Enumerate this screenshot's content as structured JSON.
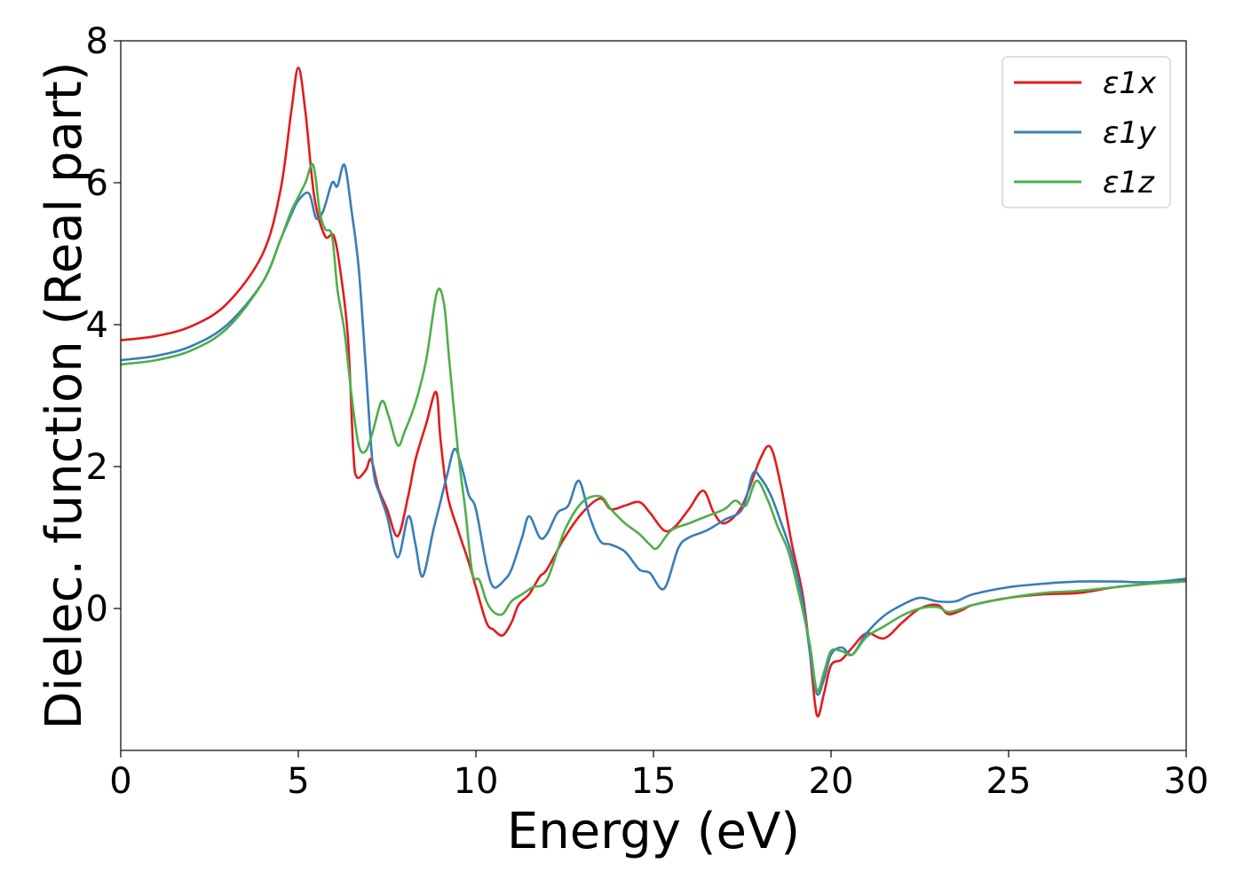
{
  "chart_data": {
    "type": "line",
    "title": "",
    "xlabel": "Energy (eV)",
    "ylabel": "Dielec. function (Real part)",
    "xlim": [
      0,
      30
    ],
    "ylim": [
      -2,
      8
    ],
    "xticks": [
      0,
      5,
      10,
      15,
      20,
      25,
      30
    ],
    "yticks": [
      0,
      2,
      4,
      6,
      8
    ],
    "grid": false,
    "legend_position": "top-right",
    "series": [
      {
        "name": "ε1x",
        "color": "#e41a1c",
        "points": [
          [
            0,
            3.78
          ],
          [
            1,
            3.84
          ],
          [
            2,
            3.98
          ],
          [
            3,
            4.3
          ],
          [
            4,
            5.0
          ],
          [
            4.5,
            5.9
          ],
          [
            4.8,
            7.0
          ],
          [
            5.0,
            7.62
          ],
          [
            5.2,
            7.0
          ],
          [
            5.45,
            5.8
          ],
          [
            5.75,
            5.25
          ],
          [
            6.0,
            5.25
          ],
          [
            6.2,
            4.7
          ],
          [
            6.4,
            3.8
          ],
          [
            6.55,
            2.2
          ],
          [
            6.65,
            1.85
          ],
          [
            6.9,
            1.95
          ],
          [
            7.05,
            2.1
          ],
          [
            7.25,
            1.7
          ],
          [
            7.5,
            1.4
          ],
          [
            7.8,
            1.02
          ],
          [
            8.1,
            1.6
          ],
          [
            8.3,
            2.1
          ],
          [
            8.6,
            2.6
          ],
          [
            8.88,
            3.05
          ],
          [
            9.0,
            2.4
          ],
          [
            9.2,
            1.6
          ],
          [
            9.5,
            1.1
          ],
          [
            9.8,
            0.65
          ],
          [
            10.0,
            0.3
          ],
          [
            10.3,
            -0.2
          ],
          [
            10.5,
            -0.3
          ],
          [
            10.75,
            -0.38
          ],
          [
            11.0,
            -0.2
          ],
          [
            11.2,
            0.05
          ],
          [
            11.5,
            0.2
          ],
          [
            11.8,
            0.45
          ],
          [
            12.0,
            0.55
          ],
          [
            12.5,
            1.0
          ],
          [
            13.0,
            1.35
          ],
          [
            13.5,
            1.55
          ],
          [
            13.8,
            1.4
          ],
          [
            14.2,
            1.45
          ],
          [
            14.6,
            1.5
          ],
          [
            14.9,
            1.35
          ],
          [
            15.3,
            1.1
          ],
          [
            15.6,
            1.15
          ],
          [
            16.0,
            1.4
          ],
          [
            16.4,
            1.66
          ],
          [
            16.7,
            1.35
          ],
          [
            17.0,
            1.2
          ],
          [
            17.5,
            1.45
          ],
          [
            18.0,
            2.1
          ],
          [
            18.3,
            2.27
          ],
          [
            18.6,
            1.7
          ],
          [
            18.9,
            0.9
          ],
          [
            19.2,
            0.2
          ],
          [
            19.4,
            -0.6
          ],
          [
            19.6,
            -1.5
          ],
          [
            19.8,
            -1.2
          ],
          [
            20.0,
            -0.8
          ],
          [
            20.3,
            -0.72
          ],
          [
            20.6,
            -0.55
          ],
          [
            21.0,
            -0.35
          ],
          [
            21.5,
            -0.42
          ],
          [
            22.0,
            -0.2
          ],
          [
            22.5,
            0.0
          ],
          [
            23.0,
            0.05
          ],
          [
            23.3,
            -0.08
          ],
          [
            23.7,
            -0.02
          ],
          [
            24.0,
            0.05
          ],
          [
            25.0,
            0.15
          ],
          [
            26.0,
            0.2
          ],
          [
            27.0,
            0.22
          ],
          [
            28.0,
            0.3
          ],
          [
            29.0,
            0.35
          ],
          [
            30.0,
            0.4
          ]
        ]
      },
      {
        "name": "ε1y",
        "color": "#377eb8",
        "points": [
          [
            0,
            3.5
          ],
          [
            1,
            3.56
          ],
          [
            2,
            3.7
          ],
          [
            3,
            4.0
          ],
          [
            4,
            4.6
          ],
          [
            4.5,
            5.2
          ],
          [
            4.8,
            5.55
          ],
          [
            5.0,
            5.75
          ],
          [
            5.3,
            5.85
          ],
          [
            5.5,
            5.5
          ],
          [
            5.7,
            5.6
          ],
          [
            5.95,
            6.0
          ],
          [
            6.1,
            5.95
          ],
          [
            6.3,
            6.25
          ],
          [
            6.5,
            5.6
          ],
          [
            6.7,
            4.8
          ],
          [
            6.9,
            3.4
          ],
          [
            7.1,
            2.0
          ],
          [
            7.3,
            1.6
          ],
          [
            7.5,
            1.3
          ],
          [
            7.8,
            0.72
          ],
          [
            8.1,
            1.3
          ],
          [
            8.3,
            0.9
          ],
          [
            8.5,
            0.45
          ],
          [
            8.8,
            1.1
          ],
          [
            9.0,
            1.5
          ],
          [
            9.2,
            1.9
          ],
          [
            9.4,
            2.25
          ],
          [
            9.6,
            2.0
          ],
          [
            9.8,
            1.6
          ],
          [
            10.0,
            1.4
          ],
          [
            10.3,
            0.6
          ],
          [
            10.5,
            0.3
          ],
          [
            10.8,
            0.4
          ],
          [
            11.0,
            0.55
          ],
          [
            11.3,
            1.0
          ],
          [
            11.5,
            1.3
          ],
          [
            11.8,
            1.0
          ],
          [
            12.0,
            1.05
          ],
          [
            12.3,
            1.35
          ],
          [
            12.6,
            1.45
          ],
          [
            12.9,
            1.8
          ],
          [
            13.2,
            1.3
          ],
          [
            13.5,
            0.95
          ],
          [
            13.8,
            0.9
          ],
          [
            14.2,
            0.8
          ],
          [
            14.6,
            0.55
          ],
          [
            14.9,
            0.5
          ],
          [
            15.3,
            0.28
          ],
          [
            15.7,
            0.85
          ],
          [
            16.0,
            1.0
          ],
          [
            16.5,
            1.1
          ],
          [
            17.0,
            1.25
          ],
          [
            17.5,
            1.4
          ],
          [
            17.8,
            1.9
          ],
          [
            18.0,
            1.85
          ],
          [
            18.3,
            1.6
          ],
          [
            18.6,
            1.2
          ],
          [
            18.9,
            0.75
          ],
          [
            19.2,
            0.1
          ],
          [
            19.4,
            -0.6
          ],
          [
            19.6,
            -1.2
          ],
          [
            19.8,
            -1.0
          ],
          [
            20.0,
            -0.65
          ],
          [
            20.3,
            -0.55
          ],
          [
            20.6,
            -0.65
          ],
          [
            21.0,
            -0.35
          ],
          [
            21.5,
            -0.1
          ],
          [
            22.0,
            0.05
          ],
          [
            22.5,
            0.15
          ],
          [
            23.0,
            0.1
          ],
          [
            23.5,
            0.1
          ],
          [
            24.0,
            0.2
          ],
          [
            25.0,
            0.3
          ],
          [
            26.0,
            0.35
          ],
          [
            27.0,
            0.38
          ],
          [
            28.0,
            0.38
          ],
          [
            29.0,
            0.37
          ],
          [
            30.0,
            0.42
          ]
        ]
      },
      {
        "name": "ε1z",
        "color": "#4daf4a",
        "points": [
          [
            0,
            3.44
          ],
          [
            1,
            3.5
          ],
          [
            2,
            3.64
          ],
          [
            3,
            3.95
          ],
          [
            4,
            4.6
          ],
          [
            4.5,
            5.2
          ],
          [
            4.8,
            5.6
          ],
          [
            5.0,
            5.8
          ],
          [
            5.2,
            6.0
          ],
          [
            5.42,
            6.25
          ],
          [
            5.6,
            5.6
          ],
          [
            5.75,
            5.35
          ],
          [
            5.95,
            5.25
          ],
          [
            6.1,
            4.5
          ],
          [
            6.3,
            3.9
          ],
          [
            6.5,
            3.0
          ],
          [
            6.7,
            2.3
          ],
          [
            6.9,
            2.22
          ],
          [
            7.1,
            2.5
          ],
          [
            7.35,
            2.92
          ],
          [
            7.55,
            2.7
          ],
          [
            7.8,
            2.3
          ],
          [
            8.0,
            2.5
          ],
          [
            8.3,
            2.9
          ],
          [
            8.6,
            3.5
          ],
          [
            8.9,
            4.45
          ],
          [
            9.1,
            4.3
          ],
          [
            9.25,
            3.5
          ],
          [
            9.5,
            2.2
          ],
          [
            9.7,
            1.4
          ],
          [
            9.9,
            0.5
          ],
          [
            10.1,
            0.4
          ],
          [
            10.3,
            0.1
          ],
          [
            10.5,
            -0.05
          ],
          [
            10.75,
            -0.08
          ],
          [
            11.0,
            0.1
          ],
          [
            11.3,
            0.2
          ],
          [
            11.6,
            0.3
          ],
          [
            12.0,
            0.4
          ],
          [
            12.5,
            1.1
          ],
          [
            13.0,
            1.5
          ],
          [
            13.5,
            1.58
          ],
          [
            13.8,
            1.4
          ],
          [
            14.2,
            1.2
          ],
          [
            14.6,
            1.05
          ],
          [
            14.9,
            0.9
          ],
          [
            15.1,
            0.85
          ],
          [
            15.5,
            1.1
          ],
          [
            16.0,
            1.2
          ],
          [
            16.5,
            1.3
          ],
          [
            17.0,
            1.4
          ],
          [
            17.3,
            1.52
          ],
          [
            17.6,
            1.45
          ],
          [
            17.9,
            1.8
          ],
          [
            18.2,
            1.55
          ],
          [
            18.5,
            1.15
          ],
          [
            18.8,
            0.8
          ],
          [
            19.1,
            0.2
          ],
          [
            19.4,
            -0.5
          ],
          [
            19.6,
            -1.15
          ],
          [
            19.8,
            -0.9
          ],
          [
            20.0,
            -0.6
          ],
          [
            20.3,
            -0.6
          ],
          [
            20.6,
            -0.65
          ],
          [
            21.0,
            -0.4
          ],
          [
            21.5,
            -0.25
          ],
          [
            22.0,
            -0.1
          ],
          [
            22.5,
            0.0
          ],
          [
            23.0,
            0.02
          ],
          [
            23.3,
            -0.05
          ],
          [
            23.7,
            0.0
          ],
          [
            24.0,
            0.05
          ],
          [
            25.0,
            0.15
          ],
          [
            26.0,
            0.22
          ],
          [
            27.0,
            0.25
          ],
          [
            28.0,
            0.3
          ],
          [
            29.0,
            0.35
          ],
          [
            30.0,
            0.38
          ]
        ]
      }
    ]
  }
}
